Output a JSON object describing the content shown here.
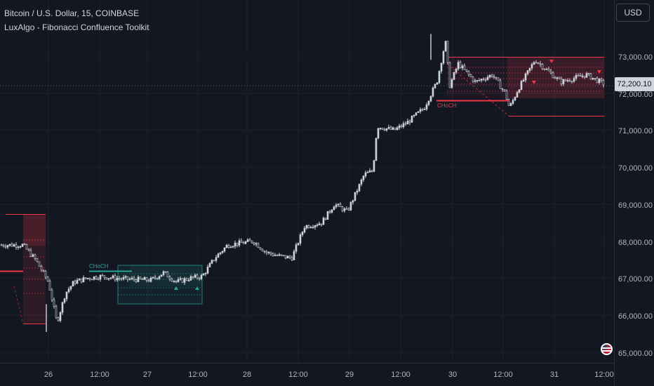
{
  "header": {
    "symbol_line": "Bitcoin / U.S. Dollar, 15, COINBASE",
    "indicator_line": "LuxAlgo - Fibonacci Confluence Toolkit"
  },
  "controls": {
    "currency_label": "USD"
  },
  "price_axis": {
    "ticks": [
      "73,000.00",
      "72,000.00",
      "71,000.00",
      "70,000.00",
      "69,000.00",
      "68,000.00",
      "67,000.00",
      "66,000.00",
      "65,000.00"
    ],
    "current_price": "72,200.10"
  },
  "time_axis": {
    "ticks": [
      "26",
      "12:00",
      "27",
      "12:00",
      "28",
      "12:00",
      "29",
      "12:00",
      "30",
      "12:00",
      "31",
      "12:00"
    ]
  },
  "annotations": {
    "choch_bull": "CHoCH",
    "choch_bear": "CHoCH"
  },
  "colors": {
    "background": "#131722",
    "candle": "#d1d4dc",
    "bull_zone": "#26a69a",
    "bear_zone": "#f23645",
    "grid": "#1e222d"
  },
  "icons": {
    "region_flag": "us-flag-icon"
  },
  "chart_data": {
    "type": "candlestick",
    "title": "Bitcoin / U.S. Dollar, 15, COINBASE",
    "x": [
      "26",
      "26 12:00",
      "27",
      "27 12:00",
      "28",
      "28 12:00",
      "29",
      "29 12:00",
      "30",
      "30 12:00",
      "31",
      "31 12:00"
    ],
    "close_path": [
      [
        "25 18:00",
        67900
      ],
      [
        "25 21:00",
        67500
      ],
      [
        "26 00:00",
        66900
      ],
      [
        "26 02:00",
        65800
      ],
      [
        "26 04:00",
        66600
      ],
      [
        "26 06:00",
        66900
      ],
      [
        "26 09:00",
        67000
      ],
      [
        "26 12:00",
        67050
      ],
      [
        "26 18:00",
        66980
      ],
      [
        "27 00:00",
        66950
      ],
      [
        "27 03:00",
        67150
      ],
      [
        "27 06:00",
        66900
      ],
      [
        "27 09:00",
        67000
      ],
      [
        "27 12:00",
        67050
      ],
      [
        "27 15:00",
        67550
      ],
      [
        "27 18:00",
        67900
      ],
      [
        "28 00:00",
        68000
      ],
      [
        "28 03:00",
        67700
      ],
      [
        "28 06:00",
        67600
      ],
      [
        "28 09:00",
        67550
      ],
      [
        "28 12:00",
        68400
      ],
      [
        "28 16:00",
        68500
      ],
      [
        "28 19:00",
        69000
      ],
      [
        "28 22:00",
        68800
      ],
      [
        "29 02:00",
        69800
      ],
      [
        "29 04:00",
        69900
      ],
      [
        "29 05:00",
        71100
      ],
      [
        "29 09:00",
        71000
      ],
      [
        "29 12:00",
        71200
      ],
      [
        "29 16:00",
        71600
      ],
      [
        "29 19:00",
        72300
      ],
      [
        "29 21:00",
        73400
      ],
      [
        "29 22:00",
        72200
      ],
      [
        "30 00:00",
        72800
      ],
      [
        "30 04:00",
        72300
      ],
      [
        "30 08:00",
        72500
      ],
      [
        "30 11:00",
        72000
      ],
      [
        "30 12:00",
        71600
      ],
      [
        "30 14:00",
        72100
      ],
      [
        "30 18:00",
        72900
      ],
      [
        "31 00:00",
        72300
      ],
      [
        "31 06:00",
        72500
      ],
      [
        "31 11:00",
        72200
      ]
    ],
    "high": 73600,
    "low": 65550,
    "ylim": [
      64800,
      73900
    ],
    "current_price": 72200.1
  }
}
